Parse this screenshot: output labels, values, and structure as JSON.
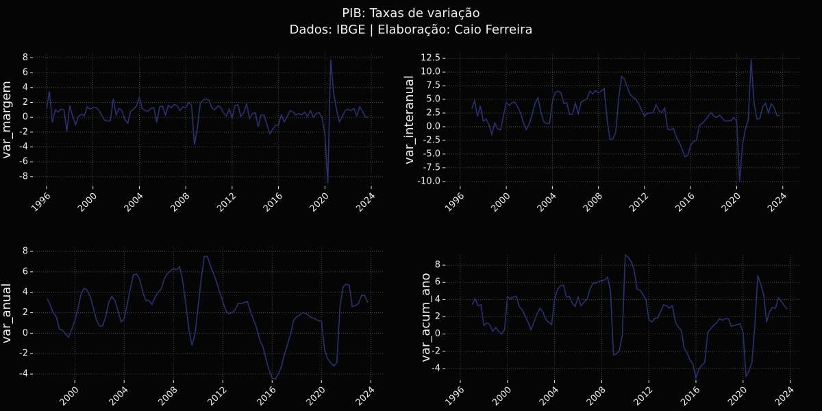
{
  "title": "PIB: Taxas de variação",
  "subtitle": "Dados: IBGE | Elaboração: Caio Ferreira",
  "chart_data": [
    {
      "type": "line",
      "ylabel": "var_margem",
      "color": "#2a3170",
      "grid": true,
      "x": [
        1996,
        1996.25,
        1996.5,
        1996.75,
        1997,
        1997.25,
        1997.5,
        1997.75,
        1998,
        1998.25,
        1998.5,
        1998.75,
        1999,
        1999.25,
        1999.5,
        1999.75,
        2000,
        2000.25,
        2000.5,
        2000.75,
        2001,
        2001.25,
        2001.5,
        2001.75,
        2002,
        2002.25,
        2002.5,
        2002.75,
        2003,
        2003.25,
        2003.5,
        2003.75,
        2004,
        2004.25,
        2004.5,
        2004.75,
        2005,
        2005.25,
        2005.5,
        2005.75,
        2006,
        2006.25,
        2006.5,
        2006.75,
        2007,
        2007.25,
        2007.5,
        2007.75,
        2008,
        2008.25,
        2008.5,
        2008.75,
        2009,
        2009.25,
        2009.5,
        2009.75,
        2010,
        2010.25,
        2010.5,
        2010.75,
        2011,
        2011.25,
        2011.5,
        2011.75,
        2012,
        2012.25,
        2012.5,
        2012.75,
        2013,
        2013.25,
        2013.5,
        2013.75,
        2014,
        2014.25,
        2014.5,
        2014.75,
        2015,
        2015.25,
        2015.5,
        2015.75,
        2016,
        2016.25,
        2016.5,
        2016.75,
        2017,
        2017.25,
        2017.5,
        2017.75,
        2018,
        2018.25,
        2018.5,
        2018.75,
        2019,
        2019.25,
        2019.5,
        2019.75,
        2020,
        2020.25,
        2020.5,
        2020.75,
        2021,
        2021.25,
        2021.5,
        2021.75,
        2022,
        2022.25,
        2022.5,
        2022.75,
        2023,
        2023.25,
        2023.5,
        2023.75
      ],
      "values": [
        1.2,
        3.5,
        -0.7,
        1.0,
        0.7,
        1.1,
        1.0,
        -1.9,
        1.6,
        0.1,
        -1.0,
        0.1,
        0.4,
        0.2,
        1.4,
        1.1,
        1.3,
        1.3,
        1.0,
        0.3,
        -0.4,
        -0.5,
        -0.5,
        2.5,
        0.3,
        1.2,
        0.9,
        -0.3,
        -0.8,
        0.8,
        1.1,
        1.5,
        2.7,
        1.2,
        0.9,
        0.8,
        1.2,
        1.3,
        -0.7,
        1.4,
        1.5,
        0.3,
        1.6,
        1.3,
        1.7,
        1.6,
        0.9,
        1.4,
        1.3,
        2.0,
        1.6,
        -3.7,
        -1.5,
        1.9,
        2.3,
        2.5,
        2.3,
        1.3,
        1.0,
        1.5,
        1.4,
        0.6,
        0.2,
        1.1,
        -0.1,
        1.6,
        1.7,
        0.1,
        0.6,
        1.8,
        -0.2,
        0.5,
        0.6,
        -1.3,
        0.3,
        0.3,
        -1.0,
        -2.2,
        -1.6,
        -1.1,
        -1.0,
        0.3,
        -0.6,
        0.1,
        0.9,
        0.7,
        0.3,
        0.5,
        0.3,
        0.7,
        0.1,
        0.9,
        0.0,
        0.5,
        0.6,
        0.0,
        -2.3,
        -8.9,
        7.8,
        3.3,
        1.0,
        -0.6,
        0.1,
        0.9,
        1.1,
        0.9,
        1.2,
        0.2,
        1.4,
        0.8,
        0.0,
        0.0
      ],
      "xlim": [
        1994.82,
        2025.06
      ],
      "xticks": [
        1996,
        2000,
        2004,
        2008,
        2012,
        2016,
        2020,
        2024
      ],
      "ylim": [
        -9.3,
        8.6
      ],
      "yticks": [
        -8,
        -6,
        -4,
        -2,
        0,
        2,
        4,
        6,
        8
      ]
    },
    {
      "type": "line",
      "ylabel": "var_interanual",
      "color": "#2a3170",
      "grid": true,
      "x": [
        1997,
        1997.25,
        1997.5,
        1997.75,
        1998,
        1998.25,
        1998.5,
        1998.75,
        1999,
        1999.25,
        1999.5,
        1999.75,
        2000,
        2000.25,
        2000.5,
        2000.75,
        2001,
        2001.25,
        2001.5,
        2001.75,
        2002,
        2002.25,
        2002.5,
        2002.75,
        2003,
        2003.25,
        2003.5,
        2003.75,
        2004,
        2004.25,
        2004.5,
        2004.75,
        2005,
        2005.25,
        2005.5,
        2005.75,
        2006,
        2006.25,
        2006.5,
        2006.75,
        2007,
        2007.25,
        2007.5,
        2007.75,
        2008,
        2008.25,
        2008.5,
        2008.75,
        2009,
        2009.25,
        2009.5,
        2009.75,
        2010,
        2010.25,
        2010.5,
        2010.75,
        2011,
        2011.25,
        2011.5,
        2011.75,
        2012,
        2012.25,
        2012.5,
        2012.75,
        2013,
        2013.25,
        2013.5,
        2013.75,
        2014,
        2014.25,
        2014.5,
        2014.75,
        2015,
        2015.25,
        2015.5,
        2015.75,
        2016,
        2016.25,
        2016.5,
        2016.75,
        2017,
        2017.25,
        2017.5,
        2017.75,
        2018,
        2018.25,
        2018.5,
        2018.75,
        2019,
        2019.25,
        2019.5,
        2019.75,
        2020,
        2020.25,
        2020.5,
        2020.75,
        2021,
        2021.25,
        2021.5,
        2021.75,
        2022,
        2022.25,
        2022.5,
        2022.75,
        2023,
        2023.25,
        2023.5,
        2023.75
      ],
      "values": [
        3.3,
        4.7,
        1.9,
        3.8,
        1.0,
        1.4,
        0.3,
        -1.4,
        0.7,
        -0.4,
        -0.6,
        2.0,
        4.4,
        3.9,
        4.4,
        4.5,
        3.6,
        2.4,
        0.6,
        -0.5,
        0.6,
        2.3,
        4.3,
        5.3,
        2.7,
        0.9,
        0.6,
        0.6,
        4.6,
        6.3,
        6.5,
        6.2,
        4.2,
        4.4,
        2.2,
        2.3,
        4.3,
        2.4,
        4.5,
        4.8,
        5.1,
        6.5,
        6.0,
        6.6,
        6.2,
        6.5,
        7.0,
        1.3,
        -2.4,
        -2.2,
        -1.0,
        5.0,
        9.2,
        8.7,
        7.2,
        5.9,
        5.4,
        5.0,
        4.2,
        3.0,
        1.9,
        2.5,
        2.5,
        2.6,
        4.0,
        2.9,
        2.6,
        3.4,
        -0.4,
        -0.6,
        -0.3,
        -1.8,
        -2.8,
        -4.0,
        -5.5,
        -5.2,
        -3.4,
        -2.7,
        -2.5,
        0.2,
        0.6,
        1.2,
        1.8,
        2.6,
        2.0,
        1.7,
        2.1,
        1.6,
        1.0,
        1.1,
        1.1,
        1.7,
        1.0,
        -10.1,
        -3.3,
        -0.5,
        1.3,
        12.3,
        4.4,
        1.4,
        1.5,
        3.6,
        4.3,
        2.5,
        4.2,
        3.5,
        2.0,
        2.1
      ],
      "xlim": [
        1994.7,
        2025.5
      ],
      "xticks": [
        1996,
        2000,
        2004,
        2008,
        2012,
        2016,
        2020,
        2024
      ],
      "ylim": [
        -10.9,
        13.4
      ],
      "yticks": [
        {
          "value": -10,
          "label": "-10.0"
        },
        -7.5,
        {
          "value": -5,
          "label": "-5.0"
        },
        -2.5,
        {
          "value": 0,
          "label": "0.0"
        },
        2.5,
        {
          "value": 5,
          "label": "5.0"
        },
        7.5,
        {
          "value": 10,
          "label": "10.0"
        },
        12.5
      ]
    },
    {
      "type": "line",
      "ylabel": "var_anual",
      "color": "#2a3170",
      "grid": true,
      "x": [
        1997.75,
        1998,
        1998.25,
        1998.5,
        1998.75,
        1999,
        1999.25,
        1999.5,
        1999.75,
        2000,
        2000.25,
        2000.5,
        2000.75,
        2001,
        2001.25,
        2001.5,
        2001.75,
        2002,
        2002.25,
        2002.5,
        2002.75,
        2003,
        2003.25,
        2003.5,
        2003.75,
        2004,
        2004.25,
        2004.5,
        2004.75,
        2005,
        2005.25,
        2005.5,
        2005.75,
        2006,
        2006.25,
        2006.5,
        2006.75,
        2007,
        2007.25,
        2007.5,
        2007.75,
        2008,
        2008.25,
        2008.5,
        2008.75,
        2009,
        2009.25,
        2009.5,
        2009.75,
        2010,
        2010.25,
        2010.5,
        2010.75,
        2011,
        2011.25,
        2011.5,
        2011.75,
        2012,
        2012.25,
        2012.5,
        2012.75,
        2013,
        2013.25,
        2013.5,
        2013.75,
        2014,
        2014.25,
        2014.5,
        2014.75,
        2015,
        2015.25,
        2015.5,
        2015.75,
        2016,
        2016.25,
        2016.5,
        2016.75,
        2017,
        2017.25,
        2017.5,
        2017.75,
        2018,
        2018.25,
        2018.5,
        2018.75,
        2019,
        2019.25,
        2019.5,
        2019.75,
        2020,
        2020.25,
        2020.5,
        2020.75,
        2021,
        2021.25,
        2021.5,
        2021.75,
        2022,
        2022.25,
        2022.5,
        2022.75,
        2023,
        2023.25,
        2023.5,
        2023.75
      ],
      "values": [
        3.4,
        2.8,
        2.0,
        1.6,
        0.4,
        0.3,
        -0.1,
        -0.4,
        0.4,
        1.2,
        2.4,
        3.8,
        4.4,
        4.2,
        3.6,
        2.5,
        1.3,
        0.7,
        0.7,
        1.6,
        3.0,
        3.6,
        3.2,
        2.2,
        1.1,
        1.4,
        2.8,
        4.3,
        5.7,
        5.8,
        5.3,
        4.1,
        3.2,
        3.2,
        2.8,
        3.5,
        4.0,
        4.3,
        5.3,
        5.8,
        6.1,
        6.3,
        6.2,
        6.5,
        5.1,
        2.9,
        0.4,
        -1.2,
        -0.1,
        2.6,
        5.3,
        7.5,
        7.5,
        6.6,
        5.8,
        5.0,
        4.0,
        3.1,
        2.2,
        1.9,
        2.0,
        2.3,
        2.9,
        2.9,
        3.0,
        3.1,
        2.1,
        1.3,
        0.5,
        -0.7,
        -1.3,
        -2.5,
        -3.6,
        -4.4,
        -4.5,
        -4.0,
        -3.3,
        -2.1,
        -1.1,
        -0.1,
        1.3,
        1.6,
        1.8,
        2.0,
        1.9,
        1.7,
        1.5,
        1.4,
        1.2,
        1.2,
        -1.6,
        -2.5,
        -2.9,
        -3.2,
        -2.9,
        2.6,
        4.5,
        4.8,
        4.7,
        2.6,
        2.7,
        2.9,
        3.7,
        3.7,
        3.0
      ],
      "xlim": [
        1996.6,
        2025.04
      ],
      "xticks": [
        2000,
        2004,
        2008,
        2012,
        2016,
        2020,
        2024
      ],
      "ylim": [
        -4.6,
        8.47
      ],
      "yticks": [
        -4,
        -2,
        0,
        2,
        4,
        6,
        8
      ]
    },
    {
      "type": "line",
      "ylabel": "var_acum_ano",
      "color": "#2a3170",
      "grid": true,
      "x": [
        1997,
        1997.25,
        1997.5,
        1997.75,
        1998,
        1998.25,
        1998.5,
        1998.75,
        1999,
        1999.25,
        1999.5,
        1999.75,
        2000,
        2000.25,
        2000.5,
        2000.75,
        2001,
        2001.25,
        2001.5,
        2001.75,
        2002,
        2002.25,
        2002.5,
        2002.75,
        2003,
        2003.25,
        2003.5,
        2003.75,
        2004,
        2004.25,
        2004.5,
        2004.75,
        2005,
        2005.25,
        2005.5,
        2005.75,
        2006,
        2006.25,
        2006.5,
        2006.75,
        2007,
        2007.25,
        2007.5,
        2007.75,
        2008,
        2008.25,
        2008.5,
        2008.75,
        2009,
        2009.25,
        2009.5,
        2009.75,
        2010,
        2010.25,
        2010.5,
        2010.75,
        2011,
        2011.25,
        2011.5,
        2011.75,
        2012,
        2012.25,
        2012.5,
        2012.75,
        2013,
        2013.25,
        2013.5,
        2013.75,
        2014,
        2014.25,
        2014.5,
        2014.75,
        2015,
        2015.25,
        2015.5,
        2015.75,
        2016,
        2016.25,
        2016.5,
        2016.75,
        2017,
        2017.25,
        2017.5,
        2017.75,
        2018,
        2018.25,
        2018.5,
        2018.75,
        2019,
        2019.25,
        2019.5,
        2019.75,
        2020,
        2020.25,
        2020.5,
        2020.75,
        2021,
        2021.25,
        2021.5,
        2021.75,
        2022,
        2022.25,
        2022.5,
        2022.75,
        2023,
        2023.25,
        2023.5,
        2023.75
      ],
      "values": [
        3.4,
        4.1,
        3.3,
        3.4,
        1.0,
        1.3,
        1.1,
        0.3,
        0.8,
        0.3,
        0.0,
        0.5,
        4.3,
        4.1,
        4.3,
        4.4,
        3.2,
        2.8,
        2.1,
        1.4,
        0.5,
        1.4,
        2.3,
        3.0,
        2.6,
        1.7,
        1.4,
        1.1,
        4.0,
        5.2,
        5.6,
        5.7,
        4.3,
        4.4,
        3.6,
        3.2,
        4.3,
        3.3,
        3.7,
        4.0,
        5.2,
        5.9,
        5.9,
        6.1,
        6.2,
        6.3,
        6.6,
        5.0,
        -2.4,
        -2.3,
        -1.9,
        -0.1,
        9.2,
        8.9,
        8.4,
        7.5,
        5.2,
        5.1,
        4.6,
        4.0,
        1.7,
        1.4,
        1.8,
        1.9,
        2.6,
        3.4,
        3.3,
        3.0,
        3.3,
        1.4,
        0.8,
        0.5,
        -1.6,
        -2.2,
        -3.0,
        -3.5,
        -5.1,
        -4.1,
        -3.6,
        -3.3,
        0.2,
        0.6,
        1.0,
        1.3,
        1.8,
        1.6,
        1.8,
        1.8,
        0.9,
        1.0,
        1.1,
        1.2,
        0.2,
        -4.9,
        -4.3,
        -3.3,
        1.0,
        6.8,
        5.8,
        4.6,
        1.4,
        2.6,
        3.1,
        3.0,
        4.2,
        3.8,
        3.3,
        2.9
      ],
      "xlim": [
        1994.72,
        2024.84
      ],
      "xticks": [
        1996,
        2000,
        2004,
        2008,
        2012,
        2016,
        2020,
        2024
      ],
      "ylim": [
        -5.35,
        9.2
      ],
      "yticks": [
        -4,
        -2,
        0,
        2,
        4,
        6,
        8
      ]
    }
  ]
}
